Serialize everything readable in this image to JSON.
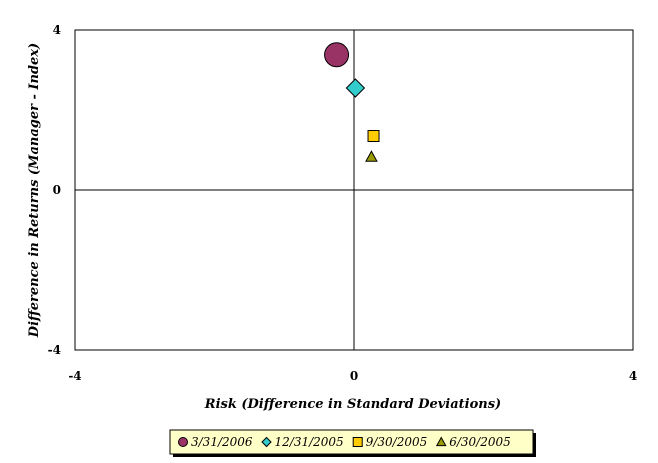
{
  "chart_data": {
    "type": "scatter",
    "title": "",
    "xlabel": "Risk (Difference in Standard Deviations)",
    "ylabel": "Difference in Returns (Manager - Index)",
    "xlim": [
      -4,
      4
    ],
    "ylim": [
      -4,
      4
    ],
    "x_ticks": [
      "-4",
      "0",
      "4"
    ],
    "y_ticks": [
      "-4",
      "0",
      "4"
    ],
    "grid": false,
    "legend_position": "bottom",
    "series": [
      {
        "name": "3/31/2006",
        "x": -0.25,
        "y": 3.38,
        "marker": "circle",
        "color": "#993366"
      },
      {
        "name": "12/31/2005",
        "x": 0.02,
        "y": 2.55,
        "marker": "diamond",
        "color": "#33CCCC"
      },
      {
        "name": "9/30/2005",
        "x": 0.28,
        "y": 1.35,
        "marker": "square",
        "color": "#FFCC00"
      },
      {
        "name": "6/30/2005",
        "x": 0.25,
        "y": 0.83,
        "marker": "triangle",
        "color": "#999900"
      }
    ]
  }
}
